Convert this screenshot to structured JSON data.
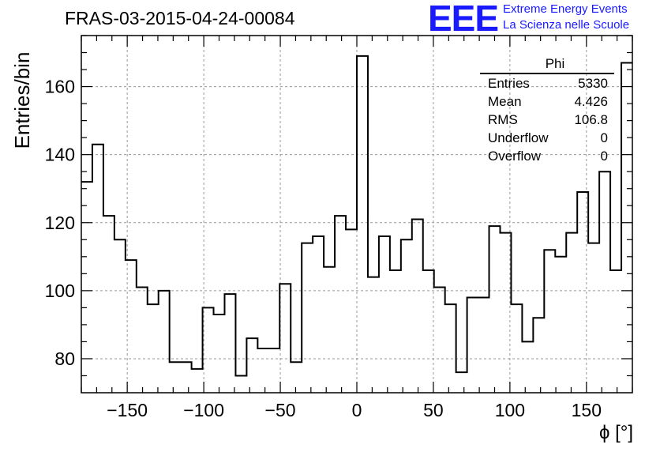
{
  "header": {
    "title": "FRAS-03-2015-04-24-00084",
    "logo_mark": "EEE",
    "logo_line1": "Extreme Energy Events",
    "logo_line2": "La Scienza nelle Scuole",
    "logo_color": "#1a1aff"
  },
  "stats_box": {
    "name": "Phi",
    "rows": [
      {
        "label": "Entries",
        "value": "5330"
      },
      {
        "label": "Mean",
        "value": "4.426"
      },
      {
        "label": "RMS",
        "value": "106.8"
      },
      {
        "label": "Underflow",
        "value": "0"
      },
      {
        "label": "Overflow",
        "value": "0"
      }
    ]
  },
  "chart_data": {
    "type": "bar",
    "style": "step-histogram",
    "title": "FRAS-03-2015-04-24-00084",
    "xlabel": "ϕ [°]",
    "ylabel": "Entries/bin",
    "xlim": [
      -180,
      180
    ],
    "ylim": [
      70,
      175
    ],
    "bin_width": 7.2,
    "bin_edges_start": -180,
    "x_ticks": [
      -150,
      -100,
      -50,
      0,
      50,
      100,
      150
    ],
    "x_tick_labels": [
      "−150",
      "−100",
      "−50",
      "0",
      "50",
      "100",
      "150"
    ],
    "y_ticks": [
      80,
      100,
      120,
      140,
      160
    ],
    "y_tick_labels": [
      "80",
      "100",
      "120",
      "140",
      "160"
    ],
    "grid": true,
    "grid_style": "dashed",
    "values": [
      132,
      143,
      122,
      115,
      109,
      101,
      96,
      100,
      79,
      79,
      77,
      95,
      93,
      99,
      75,
      86,
      83,
      83,
      102,
      79,
      114,
      116,
      107,
      122,
      118,
      169,
      104,
      116,
      106,
      115,
      121,
      106,
      101,
      96,
      76,
      98,
      98,
      119,
      117,
      96,
      85,
      92,
      112,
      110,
      117,
      129,
      114,
      135,
      106,
      167
    ],
    "line_color": "#000000"
  }
}
